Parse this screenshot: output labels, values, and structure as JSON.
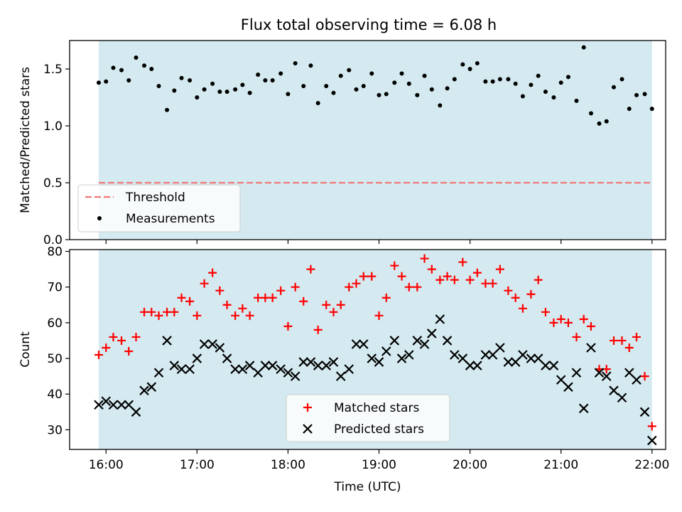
{
  "title": "Flux total observing time = 6.08 h",
  "colors": {
    "shade": "#d4eaf0",
    "threshold": "#f07777",
    "matched": "#ff0000",
    "predicted": "#000000",
    "measurement": "#000000"
  },
  "chart_data": [
    {
      "type": "scatter",
      "ylabel": "Matched/Predicted stars",
      "ylim": [
        0,
        1.75
      ],
      "yticks": [
        "0.0",
        "0.5",
        "1.0",
        "1.5"
      ],
      "xlim": [
        15.6,
        22.15
      ],
      "shaded_x": [
        15.92,
        22.0
      ],
      "threshold": {
        "name": "Threshold",
        "y": 0.5,
        "x": [
          15.92,
          22.0
        ]
      },
      "legend": [
        "Threshold",
        "Measurements"
      ],
      "legend_position": "lower-left",
      "series": [
        {
          "name": "Measurements",
          "x": [
            15.92,
            16.0,
            16.08,
            16.17,
            16.25,
            16.33,
            16.42,
            16.5,
            16.58,
            16.67,
            16.75,
            16.83,
            16.92,
            17.0,
            17.08,
            17.17,
            17.25,
            17.33,
            17.42,
            17.5,
            17.58,
            17.67,
            17.75,
            17.83,
            17.92,
            18.0,
            18.08,
            18.17,
            18.25,
            18.33,
            18.42,
            18.5,
            18.58,
            18.67,
            18.75,
            18.83,
            18.92,
            19.0,
            19.08,
            19.17,
            19.25,
            19.33,
            19.42,
            19.5,
            19.58,
            19.67,
            19.75,
            19.83,
            19.92,
            20.0,
            20.08,
            20.17,
            20.25,
            20.33,
            20.42,
            20.5,
            20.58,
            20.67,
            20.75,
            20.83,
            20.92,
            21.0,
            21.08,
            21.17,
            21.25,
            21.33,
            21.42,
            21.5,
            21.58,
            21.67,
            21.75,
            21.83,
            21.92,
            22.0
          ],
          "y": [
            1.38,
            1.39,
            1.51,
            1.49,
            1.4,
            1.6,
            1.53,
            1.5,
            1.35,
            1.14,
            1.31,
            1.42,
            1.4,
            1.25,
            1.32,
            1.37,
            1.3,
            1.3,
            1.32,
            1.36,
            1.29,
            1.45,
            1.4,
            1.4,
            1.46,
            1.28,
            1.55,
            1.35,
            1.53,
            1.2,
            1.35,
            1.29,
            1.44,
            1.49,
            1.32,
            1.35,
            1.46,
            1.27,
            1.28,
            1.38,
            1.46,
            1.37,
            1.27,
            1.44,
            1.32,
            1.18,
            1.33,
            1.41,
            1.54,
            1.5,
            1.55,
            1.39,
            1.39,
            1.41,
            1.41,
            1.37,
            1.26,
            1.36,
            1.44,
            1.3,
            1.25,
            1.38,
            1.43,
            1.22,
            1.69,
            1.11,
            1.02,
            1.04,
            1.34,
            1.41,
            1.15,
            1.27,
            1.28,
            1.15
          ]
        }
      ]
    },
    {
      "type": "scatter",
      "ylabel": "Count",
      "xlabel": "Time (UTC)",
      "ylim": [
        24.5,
        80.5
      ],
      "yticks": [
        "30",
        "40",
        "50",
        "60",
        "70",
        "80"
      ],
      "xlim": [
        15.6,
        22.15
      ],
      "xticks": [
        "16:00",
        "17:00",
        "18:00",
        "19:00",
        "20:00",
        "21:00",
        "22:00"
      ],
      "shaded_x": [
        15.92,
        22.0
      ],
      "legend": [
        "Matched stars",
        "Predicted stars"
      ],
      "legend_position": "lower-center",
      "series": [
        {
          "name": "Matched stars",
          "x": [
            15.92,
            16.0,
            16.08,
            16.17,
            16.25,
            16.33,
            16.42,
            16.5,
            16.58,
            16.67,
            16.75,
            16.83,
            16.92,
            17.0,
            17.08,
            17.17,
            17.25,
            17.33,
            17.42,
            17.5,
            17.58,
            17.67,
            17.75,
            17.83,
            17.92,
            18.0,
            18.08,
            18.17,
            18.25,
            18.33,
            18.42,
            18.5,
            18.58,
            18.67,
            18.75,
            18.83,
            18.92,
            19.0,
            19.08,
            19.17,
            19.25,
            19.33,
            19.42,
            19.5,
            19.58,
            19.67,
            19.75,
            19.83,
            19.92,
            20.0,
            20.08,
            20.17,
            20.25,
            20.33,
            20.42,
            20.5,
            20.58,
            20.67,
            20.75,
            20.83,
            20.92,
            21.0,
            21.08,
            21.17,
            21.25,
            21.33,
            21.42,
            21.5,
            21.58,
            21.67,
            21.75,
            21.83,
            21.92,
            22.0
          ],
          "y": [
            51,
            53,
            56,
            55,
            52,
            56,
            63,
            63,
            62,
            63,
            63,
            67,
            66,
            62,
            71,
            74,
            69,
            65,
            62,
            64,
            62,
            67,
            67,
            67,
            69,
            59,
            70,
            66,
            75,
            58,
            65,
            63,
            65,
            70,
            71,
            73,
            73,
            62,
            67,
            76,
            73,
            70,
            70,
            78,
            75,
            72,
            73,
            72,
            77,
            72,
            74,
            71,
            71,
            75,
            69,
            67,
            64,
            68,
            72,
            63,
            60,
            61,
            60,
            56,
            61,
            59,
            47,
            47,
            55,
            55,
            53,
            56,
            45,
            31
          ]
        },
        {
          "name": "Predicted stars",
          "x": [
            15.92,
            16.0,
            16.08,
            16.17,
            16.25,
            16.33,
            16.42,
            16.5,
            16.58,
            16.67,
            16.75,
            16.83,
            16.92,
            17.0,
            17.08,
            17.17,
            17.25,
            17.33,
            17.42,
            17.5,
            17.58,
            17.67,
            17.75,
            17.83,
            17.92,
            18.0,
            18.08,
            18.17,
            18.25,
            18.33,
            18.42,
            18.5,
            18.58,
            18.67,
            18.75,
            18.83,
            18.92,
            19.0,
            19.08,
            19.17,
            19.25,
            19.33,
            19.42,
            19.5,
            19.58,
            19.67,
            19.75,
            19.83,
            19.92,
            20.0,
            20.08,
            20.17,
            20.25,
            20.33,
            20.42,
            20.5,
            20.58,
            20.67,
            20.75,
            20.83,
            20.92,
            21.0,
            21.08,
            21.17,
            21.25,
            21.33,
            21.42,
            21.5,
            21.58,
            21.67,
            21.75,
            21.83,
            21.92,
            22.0
          ],
          "y": [
            37,
            38,
            37,
            37,
            37,
            35,
            41,
            42,
            46,
            55,
            48,
            47,
            47,
            50,
            54,
            54,
            53,
            50,
            47,
            47,
            48,
            46,
            48,
            48,
            47,
            46,
            45,
            49,
            49,
            48,
            48,
            49,
            45,
            47,
            54,
            54,
            50,
            49,
            52,
            55,
            50,
            51,
            55,
            54,
            57,
            61,
            55,
            51,
            50,
            48,
            48,
            51,
            51,
            53,
            49,
            49,
            51,
            50,
            50,
            48,
            48,
            44,
            42,
            46,
            36,
            53,
            46,
            45,
            41,
            39,
            46,
            44,
            35,
            27
          ]
        }
      ]
    }
  ]
}
